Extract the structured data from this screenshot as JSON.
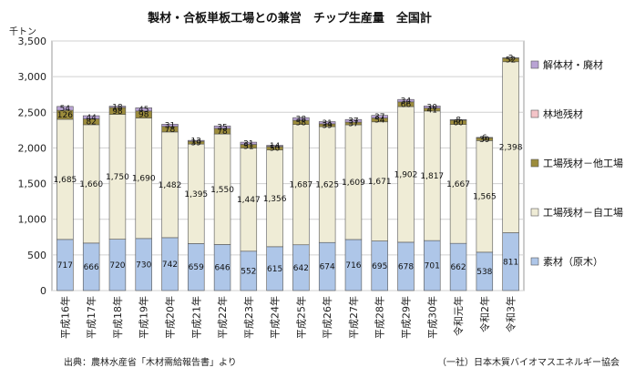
{
  "chart_data": {
    "type": "bar",
    "stacked": true,
    "title": "製材・合板単板工場との兼営　チップ生産量　全国計",
    "unit_label": "千トン",
    "ylim": [
      0,
      3500
    ],
    "yticks": [
      "0",
      "500",
      "1,000",
      "1,500",
      "2,000",
      "2,500",
      "3,000",
      "3,500"
    ],
    "ytick_values": [
      0,
      500,
      1000,
      1500,
      2000,
      2500,
      3000,
      3500
    ],
    "grid": true,
    "legend_position": "right",
    "categories": [
      "平成16年",
      "平成17年",
      "平成18年",
      "平成19年",
      "平成20年",
      "平成21年",
      "平成22年",
      "平成23年",
      "平成24年",
      "平成25年",
      "平成26年",
      "平成27年",
      "平成28年",
      "平成29年",
      "平成30年",
      "令和元年",
      "令和2年",
      "令和3年"
    ],
    "series": [
      {
        "name": "素材（原木）",
        "color": "#aec6e8",
        "values": [
          717,
          666,
          720,
          730,
          742,
          659,
          646,
          552,
          615,
          642,
          674,
          716,
          695,
          678,
          701,
          662,
          538,
          811
        ],
        "labels": [
          "717",
          "666",
          "720",
          "730",
          "742",
          "659",
          "646",
          "552",
          "615",
          "642",
          "674",
          "716",
          "695",
          "678",
          "701",
          "662",
          "538",
          "811"
        ]
      },
      {
        "name": "工場残材－自工場",
        "color": "#efecd6",
        "values": [
          1685,
          1660,
          1750,
          1690,
          1482,
          1395,
          1550,
          1447,
          1356,
          1687,
          1625,
          1609,
          1671,
          1902,
          1817,
          1667,
          1565,
          2398
        ],
        "labels": [
          "1,685",
          "1,660",
          "1,750",
          "1,690",
          "1,482",
          "1,395",
          "1,550",
          "1,447",
          "1,356",
          "1,687",
          "1,625",
          "1,609",
          "1,671",
          "1,902",
          "1,817",
          "1,667",
          "1,565",
          "2,398"
        ]
      },
      {
        "name": "工場残材－他工場",
        "color": "#9c8c3c",
        "values": [
          126,
          82,
          98,
          98,
          78,
          39,
          78,
          51,
          50,
          58,
          39,
          37,
          54,
          66,
          41,
          60,
          39,
          52
        ],
        "labels": [
          "126",
          "82",
          "98",
          "98",
          "78",
          "39",
          "78",
          "51",
          "50",
          "58",
          "39",
          "37",
          "54",
          "66",
          "41",
          "60",
          "39",
          "52"
        ]
      },
      {
        "name": "林地残材",
        "color": "#f4c4c8",
        "values": [
          0,
          0,
          0,
          0,
          0,
          0,
          0,
          0,
          2,
          0,
          0,
          0,
          0,
          0,
          0,
          0,
          0,
          0
        ],
        "labels": [
          "",
          "",
          "",
          "",
          "",
          "",
          "",
          "",
          "",
          "",
          "",
          "",
          "",
          "",
          "",
          "",
          "",
          ""
        ]
      },
      {
        "name": "解体材・廃材",
        "color": "#b9a3d4",
        "values": [
          54,
          44,
          18,
          45,
          31,
          13,
          35,
          31,
          14,
          38,
          31,
          37,
          37,
          34,
          30,
          8,
          6,
          3
        ],
        "labels": [
          "54",
          "44",
          "18",
          "45",
          "31",
          "13",
          "35",
          "31",
          "14",
          "38",
          "31",
          "37",
          "37",
          "34",
          "30",
          "8",
          "6",
          "3"
        ]
      }
    ],
    "legend_order": [
      "解体材・廃材",
      "林地残材",
      "工場残材－他工場",
      "工場残材－自工場",
      "素材（原木）"
    ]
  },
  "footer": {
    "source": "出典：農林水産省「木材需給報告書」より",
    "credit": "（一社）日本木質バイオマスエネルギー協会"
  }
}
